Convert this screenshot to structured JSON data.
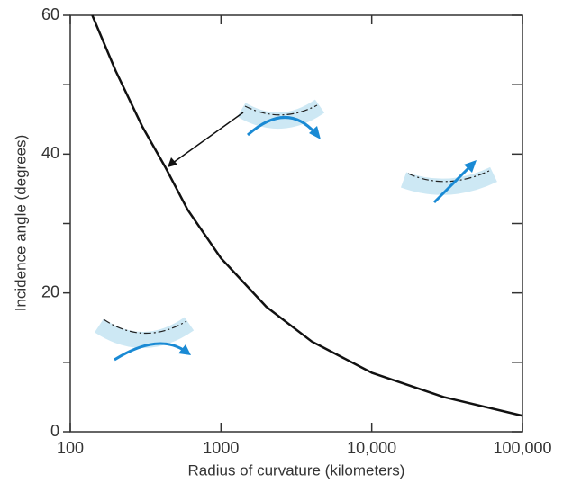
{
  "chart_data": {
    "type": "line",
    "xlabel": "Radius of curvature (kilometers)",
    "ylabel": "Incidence angle (degrees)",
    "xscale": "log",
    "xlim": [
      100,
      100000
    ],
    "xticks": [
      100,
      1000,
      {
        "value": 10000,
        "label": "10,000"
      },
      {
        "value": 100000,
        "label": "100,000"
      }
    ],
    "ylim": [
      0,
      60
    ],
    "yticks": [
      0,
      20,
      40,
      60
    ],
    "yticks_minor": [
      10,
      30,
      50
    ],
    "series": [
      {
        "color": "#111111",
        "x": [
          140,
          200,
          300,
          430,
          600,
          1000,
          2000,
          4000,
          10000,
          30000,
          100000
        ],
        "values": [
          60,
          52,
          44,
          38,
          32,
          25,
          18,
          13,
          8.5,
          5,
          2.3
        ]
      }
    ]
  }
}
